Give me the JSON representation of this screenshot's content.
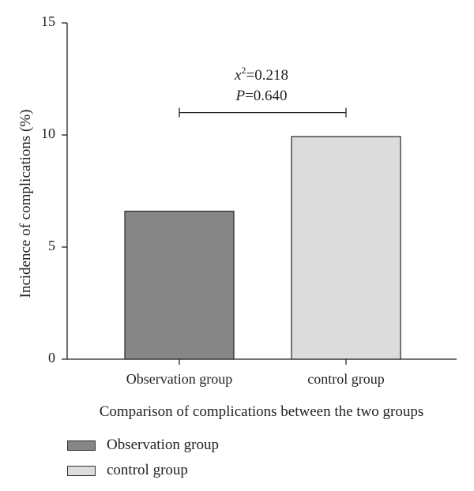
{
  "chart_data": {
    "type": "bar",
    "categories": [
      "Observation group",
      "control group"
    ],
    "values": [
      6.6,
      9.93
    ],
    "colors": [
      "#868686",
      "#dcdcdc"
    ],
    "ylabel": "Incidence of complications (%)",
    "xlabel": "Comparison of complications between the two groups",
    "ylim": [
      0,
      15
    ],
    "yticks": [
      0,
      5,
      10,
      15
    ],
    "grid": false,
    "legend_position": "bottom-left",
    "annotation": {
      "stat_var": "x",
      "stat_sup": "2",
      "stat_value": "=0.218",
      "p_var": "P",
      "p_value": "=0.640",
      "bracket_y": 11
    }
  }
}
